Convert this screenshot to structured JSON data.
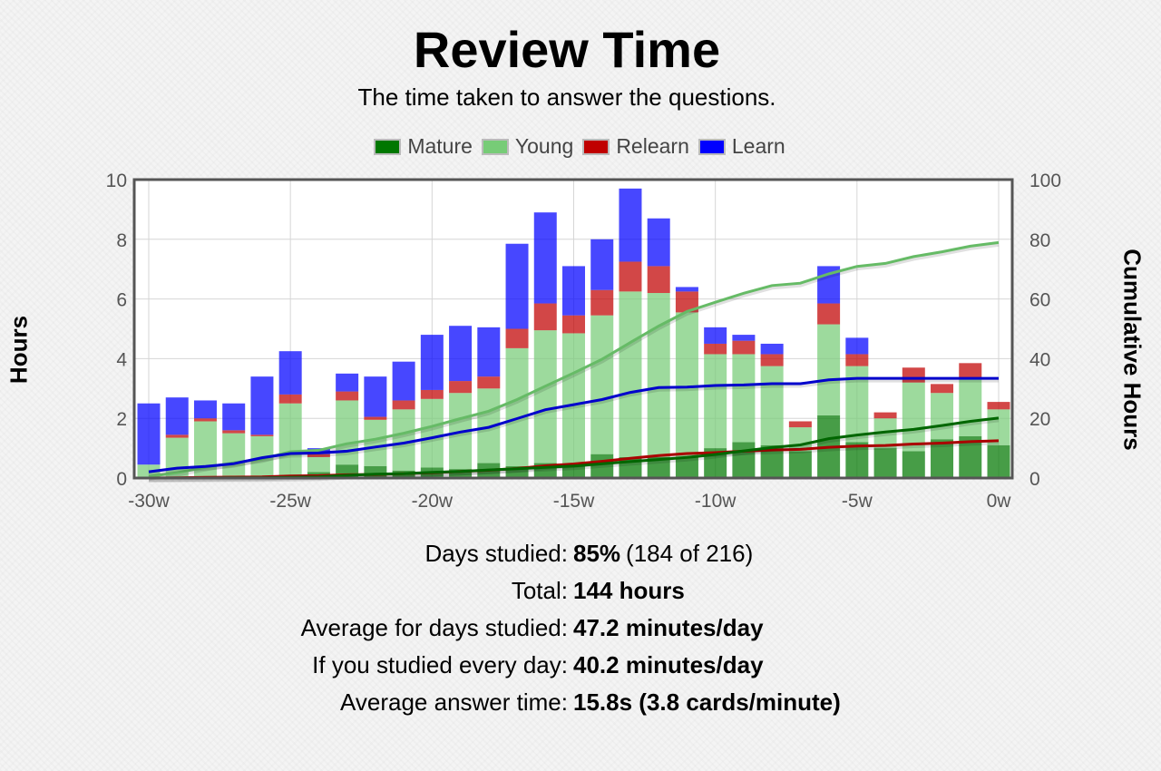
{
  "title": "Review Time",
  "subtitle": "The time taken to answer the questions.",
  "legend": [
    {
      "label": "Mature",
      "color": "#007700"
    },
    {
      "label": "Young",
      "color": "#77cc77"
    },
    {
      "label": "Relearn",
      "color": "#c00000"
    },
    {
      "label": "Learn",
      "color": "#0000ff"
    }
  ],
  "chart_data": {
    "type": "bar",
    "stacked": true,
    "categories": [
      "-30w",
      "-29w",
      "-28w",
      "-27w",
      "-26w",
      "-25w",
      "-24w",
      "-23w",
      "-22w",
      "-21w",
      "-20w",
      "-19w",
      "-18w",
      "-17w",
      "-16w",
      "-15w",
      "-14w",
      "-13w",
      "-12w",
      "-11w",
      "-10w",
      "-9w",
      "-8w",
      "-7w",
      "-6w",
      "-5w",
      "-4w",
      "-3w",
      "-2w",
      "-1w",
      "0w"
    ],
    "xticks": [
      "-30w",
      "-25w",
      "-20w",
      "-15w",
      "-10w",
      "-5w",
      "0w"
    ],
    "ylabel": "Hours",
    "ylabel_right": "Cumulative Hours",
    "ylim": [
      0,
      10
    ],
    "ylim_right": [
      0,
      100
    ],
    "yticks": [
      "0",
      "2",
      "4",
      "6",
      "8",
      "10"
    ],
    "yticks_right": [
      "0",
      "20",
      "40",
      "60",
      "80",
      "100"
    ],
    "grid": true,
    "series": [
      {
        "name": "Mature",
        "color": "#007700",
        "values": [
          0,
          0,
          0.05,
          0.05,
          0.05,
          0.1,
          0.2,
          0.45,
          0.4,
          0.25,
          0.35,
          0.3,
          0.5,
          0.4,
          0.5,
          0.45,
          0.8,
          0.7,
          0.7,
          0.7,
          1.0,
          1.2,
          1.1,
          0.9,
          2.1,
          1.2,
          1.0,
          0.9,
          1.3,
          1.4,
          1.1
        ]
      },
      {
        "name": "Young",
        "color": "#77cc77",
        "values": [
          0.45,
          1.35,
          1.85,
          1.45,
          1.35,
          2.4,
          0.5,
          2.15,
          1.55,
          2.05,
          2.3,
          2.55,
          2.5,
          3.95,
          4.45,
          4.4,
          4.65,
          5.55,
          5.5,
          4.85,
          3.15,
          2.95,
          2.65,
          0.8,
          3.05,
          2.55,
          1.0,
          2.3,
          1.55,
          1.95,
          1.2
        ]
      },
      {
        "name": "Relearn",
        "color": "#c00000",
        "values": [
          0,
          0.1,
          0.1,
          0.1,
          0.05,
          0.3,
          0.1,
          0.3,
          0.1,
          0.3,
          0.3,
          0.4,
          0.4,
          0.65,
          0.9,
          0.6,
          0.85,
          1.0,
          0.9,
          0.7,
          0.35,
          0.45,
          0.4,
          0.2,
          0.7,
          0.4,
          0.2,
          0.5,
          0.3,
          0.5,
          0.25
        ]
      },
      {
        "name": "Learn",
        "color": "#0000ff",
        "values": [
          2.05,
          1.25,
          0.6,
          0.9,
          1.95,
          1.45,
          0.2,
          0.6,
          1.35,
          1.3,
          1.85,
          1.85,
          1.65,
          2.85,
          3.05,
          1.65,
          1.7,
          2.45,
          1.6,
          0.15,
          0.55,
          0.2,
          0.35,
          0,
          1.25,
          0.55,
          0,
          0,
          0,
          0,
          0
        ]
      }
    ],
    "cumulative_series": [
      {
        "name": "Young",
        "color": "#66bb66",
        "x": [
          -30,
          -29,
          -28,
          -27,
          -26,
          -25,
          -24,
          -23,
          -22,
          -21,
          -20,
          -19,
          -18,
          -17,
          -16,
          -15,
          -14,
          -13,
          -12,
          -11,
          -10,
          -9,
          -8,
          -7,
          -6,
          -5,
          -4,
          -3,
          -2,
          -1,
          0
        ],
        "y": [
          0.5,
          1.8,
          3.6,
          5.1,
          6.4,
          8.8,
          9.3,
          11.5,
          13.0,
          15.0,
          17.3,
          19.9,
          22.4,
          26.3,
          30.8,
          35.2,
          39.8,
          45.4,
          50.9,
          55.8,
          58.9,
          61.9,
          64.5,
          65.3,
          68.4,
          70.9,
          71.9,
          74.2,
          75.8,
          77.7,
          78.9
        ]
      },
      {
        "name": "Learn",
        "color": "#0000cc",
        "x": [
          -30,
          -29,
          -28,
          -27,
          -26,
          -25,
          -24,
          -23,
          -22,
          -21,
          -20,
          -19,
          -18,
          -17,
          -16,
          -15,
          -14,
          -13,
          -12,
          -11,
          -10,
          -9,
          -8,
          -7,
          -6,
          -5,
          -4,
          -3,
          -2,
          -1,
          0
        ],
        "y": [
          2.1,
          3.3,
          3.9,
          4.8,
          6.8,
          8.2,
          8.4,
          9.0,
          10.4,
          11.7,
          13.5,
          15.4,
          17.0,
          19.9,
          22.9,
          24.6,
          26.3,
          28.7,
          30.3,
          30.5,
          31.0,
          31.2,
          31.6,
          31.6,
          32.9,
          33.4,
          33.4,
          33.4,
          33.4,
          33.4,
          33.4
        ]
      },
      {
        "name": "Relearn",
        "color": "#aa0000",
        "x": [
          -30,
          -29,
          -28,
          -27,
          -26,
          -25,
          -24,
          -23,
          -22,
          -21,
          -20,
          -19,
          -18,
          -17,
          -16,
          -15,
          -14,
          -13,
          -12,
          -11,
          -10,
          -9,
          -8,
          -7,
          -6,
          -5,
          -4,
          -3,
          -2,
          -1,
          0
        ],
        "y": [
          0.0,
          0.1,
          0.2,
          0.3,
          0.4,
          0.7,
          0.8,
          1.1,
          1.2,
          1.5,
          1.8,
          2.2,
          2.6,
          3.2,
          4.1,
          4.7,
          5.6,
          6.6,
          7.5,
          8.2,
          8.5,
          9.0,
          9.4,
          9.6,
          10.3,
          10.7,
          10.9,
          11.4,
          11.7,
          12.2,
          12.5
        ]
      },
      {
        "name": "Mature",
        "color": "#006600",
        "x": [
          -30,
          -29,
          -28,
          -27,
          -26,
          -25,
          -24,
          -23,
          -22,
          -21,
          -20,
          -19,
          -18,
          -17,
          -16,
          -15,
          -14,
          -13,
          -12,
          -11,
          -10,
          -9,
          -8,
          -7,
          -6,
          -5,
          -4,
          -3,
          -2,
          -1,
          0
        ],
        "y": [
          0.0,
          0.0,
          0.0,
          0.1,
          0.1,
          0.2,
          0.4,
          0.9,
          1.3,
          1.5,
          1.9,
          2.2,
          2.7,
          3.1,
          3.6,
          4.0,
          4.8,
          5.5,
          6.2,
          6.9,
          7.9,
          9.1,
          10.2,
          11.1,
          13.2,
          14.4,
          15.4,
          16.3,
          17.6,
          19.0,
          20.1
        ]
      }
    ]
  },
  "stats": [
    {
      "label": "Days studied:",
      "value": "85%",
      "extra": "(184 of 216)"
    },
    {
      "label": "Total:",
      "value": "144 hours",
      "extra": ""
    },
    {
      "label": "Average for days studied:",
      "value": "47.2 minutes/day",
      "extra": ""
    },
    {
      "label": "If you studied every day:",
      "value": "40.2 minutes/day",
      "extra": ""
    },
    {
      "label": "Average answer time:",
      "value": "15.8s (3.8 cards/minute)",
      "extra": ""
    }
  ]
}
